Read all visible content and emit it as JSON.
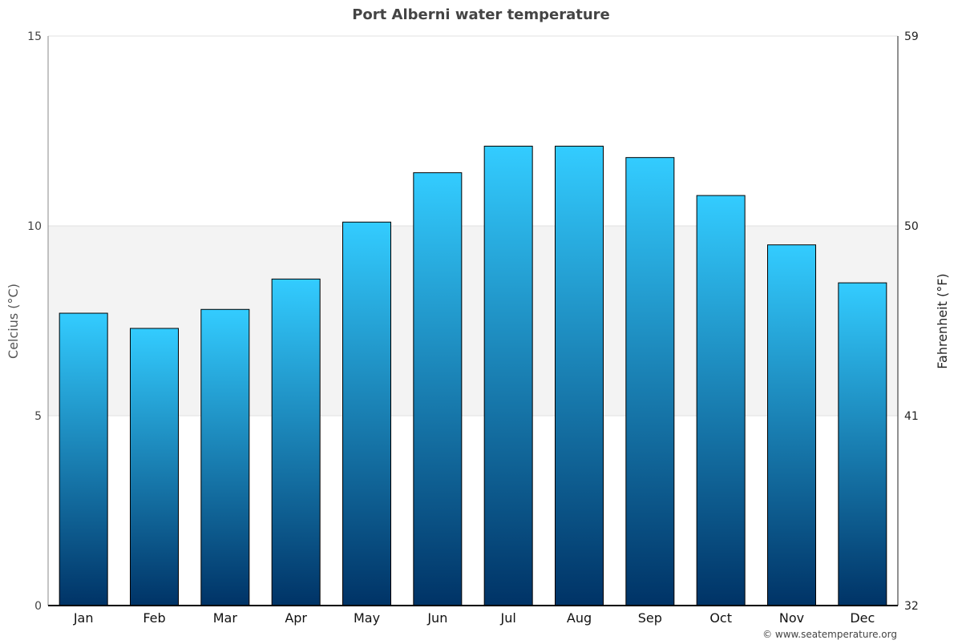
{
  "chart_data": {
    "type": "bar",
    "title": "Port Alberni water temperature",
    "ylabel": "Celcius (°C)",
    "ylabel_right": "Fahrenheit (°F)",
    "categories": [
      "Jan",
      "Feb",
      "Mar",
      "Apr",
      "May",
      "Jun",
      "Jul",
      "Aug",
      "Sep",
      "Oct",
      "Nov",
      "Dec"
    ],
    "values": [
      7.7,
      7.3,
      7.8,
      8.6,
      10.1,
      11.4,
      12.1,
      12.1,
      11.8,
      10.8,
      9.5,
      8.5
    ],
    "ylim": [
      0,
      15
    ],
    "yticks": [
      "0",
      "5",
      "10",
      "15"
    ],
    "yticks_right": [
      "32",
      "41",
      "50",
      "59"
    ],
    "shaded_band": [
      5,
      10
    ],
    "grid": true,
    "legend": "none",
    "colors": {
      "bar_top": "#33ccff",
      "bar_bottom": "#003366",
      "band": "#f3f3f3",
      "title": "#444444"
    }
  },
  "footer": {
    "credit": "© www.seatemperature.org"
  }
}
